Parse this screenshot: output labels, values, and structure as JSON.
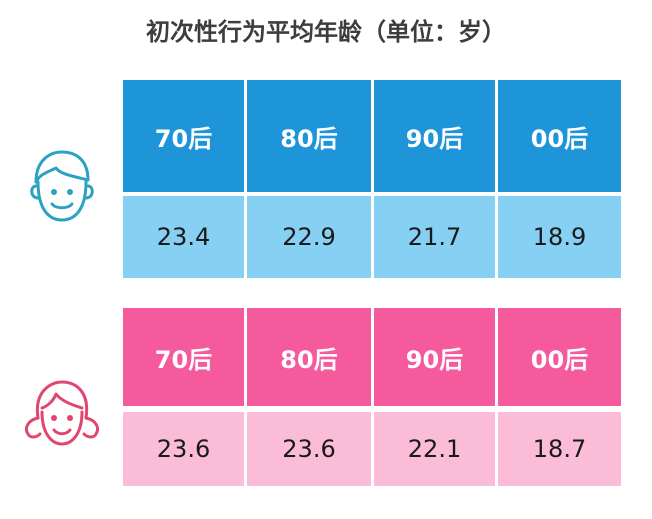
{
  "title": "初次性行为平均年龄（单位：岁）",
  "male": {
    "headers": [
      "70后",
      "80后",
      "90后",
      "00后"
    ],
    "values": [
      "23.4",
      "22.9",
      "21.7",
      "18.9"
    ]
  },
  "female": {
    "headers": [
      "70后",
      "80后",
      "90后",
      "00后"
    ],
    "values": [
      "23.6",
      "23.6",
      "22.1",
      "18.7"
    ]
  },
  "icons": {
    "male": "boy-face-icon",
    "female": "girl-face-icon"
  },
  "colors": {
    "male_header": "#1e95d9",
    "male_value": "#86d0f3",
    "female_header": "#f55a9c",
    "female_value": "#fbbcd8",
    "male_icon": "#2aa3c0",
    "female_icon": "#e0466e"
  }
}
